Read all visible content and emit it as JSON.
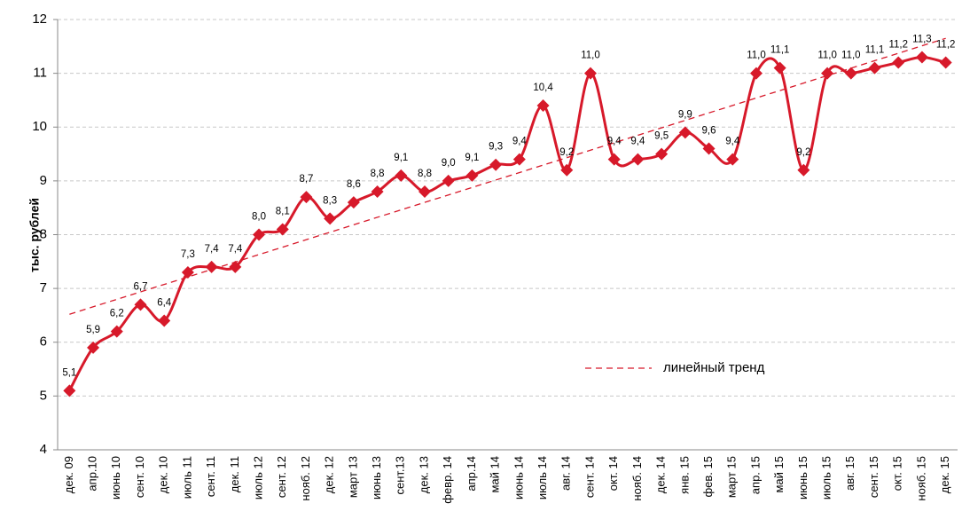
{
  "chart_data": {
    "type": "line",
    "y_label": "тыс. рублей",
    "categories": [
      "дек. 09",
      "апр.10",
      "июнь 10",
      "сент. 10",
      "дек. 10",
      "июль 11",
      "сент. 11",
      "дек. 11",
      "июль 12",
      "сент. 12",
      "нояб. 12",
      "дек. 12",
      "март 13",
      "июнь 13",
      "сент.13",
      "дек. 13",
      "февр. 14",
      "апр.14",
      "май 14",
      "июнь 14",
      "июль 14",
      "авг. 14",
      "сент. 14",
      "окт. 14",
      "нояб. 14",
      "дек. 14",
      "янв. 15",
      "фев. 15",
      "март 15",
      "апр. 15",
      "май 15",
      "июнь 15",
      "июль 15",
      "авг. 15",
      "сент. 15",
      "окт. 15",
      "нояб. 15",
      "дек. 15"
    ],
    "series": [
      {
        "color": "#d7192a",
        "values": [
          5.1,
          5.9,
          6.2,
          6.7,
          6.4,
          7.3,
          7.4,
          7.4,
          8.0,
          8.1,
          8.7,
          8.3,
          8.6,
          8.8,
          9.1,
          8.8,
          9.0,
          9.1,
          9.3,
          9.4,
          10.4,
          9.2,
          11.0,
          9.4,
          9.4,
          9.5,
          9.9,
          9.6,
          9.4,
          11.0,
          11.1,
          9.2,
          11.0,
          11.0,
          11.1,
          11.2,
          11.3,
          11.2
        ],
        "value_labels": [
          "5,1",
          "5,9",
          "6,2",
          "6,7",
          "6,4",
          "7,3",
          "7,4",
          "7,4",
          "8,0",
          "8,1",
          "8,7",
          "8,3",
          "8,6",
          "8,8",
          "9,1",
          "8,8",
          "9,0",
          "9,1",
          "9,3",
          "9,4",
          "10,4",
          "9,2",
          "11,0",
          "9,4",
          "9,4",
          "9,5",
          "9,9",
          "9,6",
          "9,4",
          "11,0",
          "11,1",
          "9,2",
          "11,0",
          "11,0",
          "11,1",
          "11,2",
          "11,3",
          "11,2"
        ]
      }
    ],
    "trend": {
      "name": "линейный тренд",
      "color": "#d7192a",
      "start": 6.52,
      "end": 11.65
    },
    "ylim": [
      4,
      12
    ],
    "yticks": [
      4,
      5,
      6,
      7,
      8,
      9,
      10,
      11,
      12
    ],
    "grid": true
  }
}
